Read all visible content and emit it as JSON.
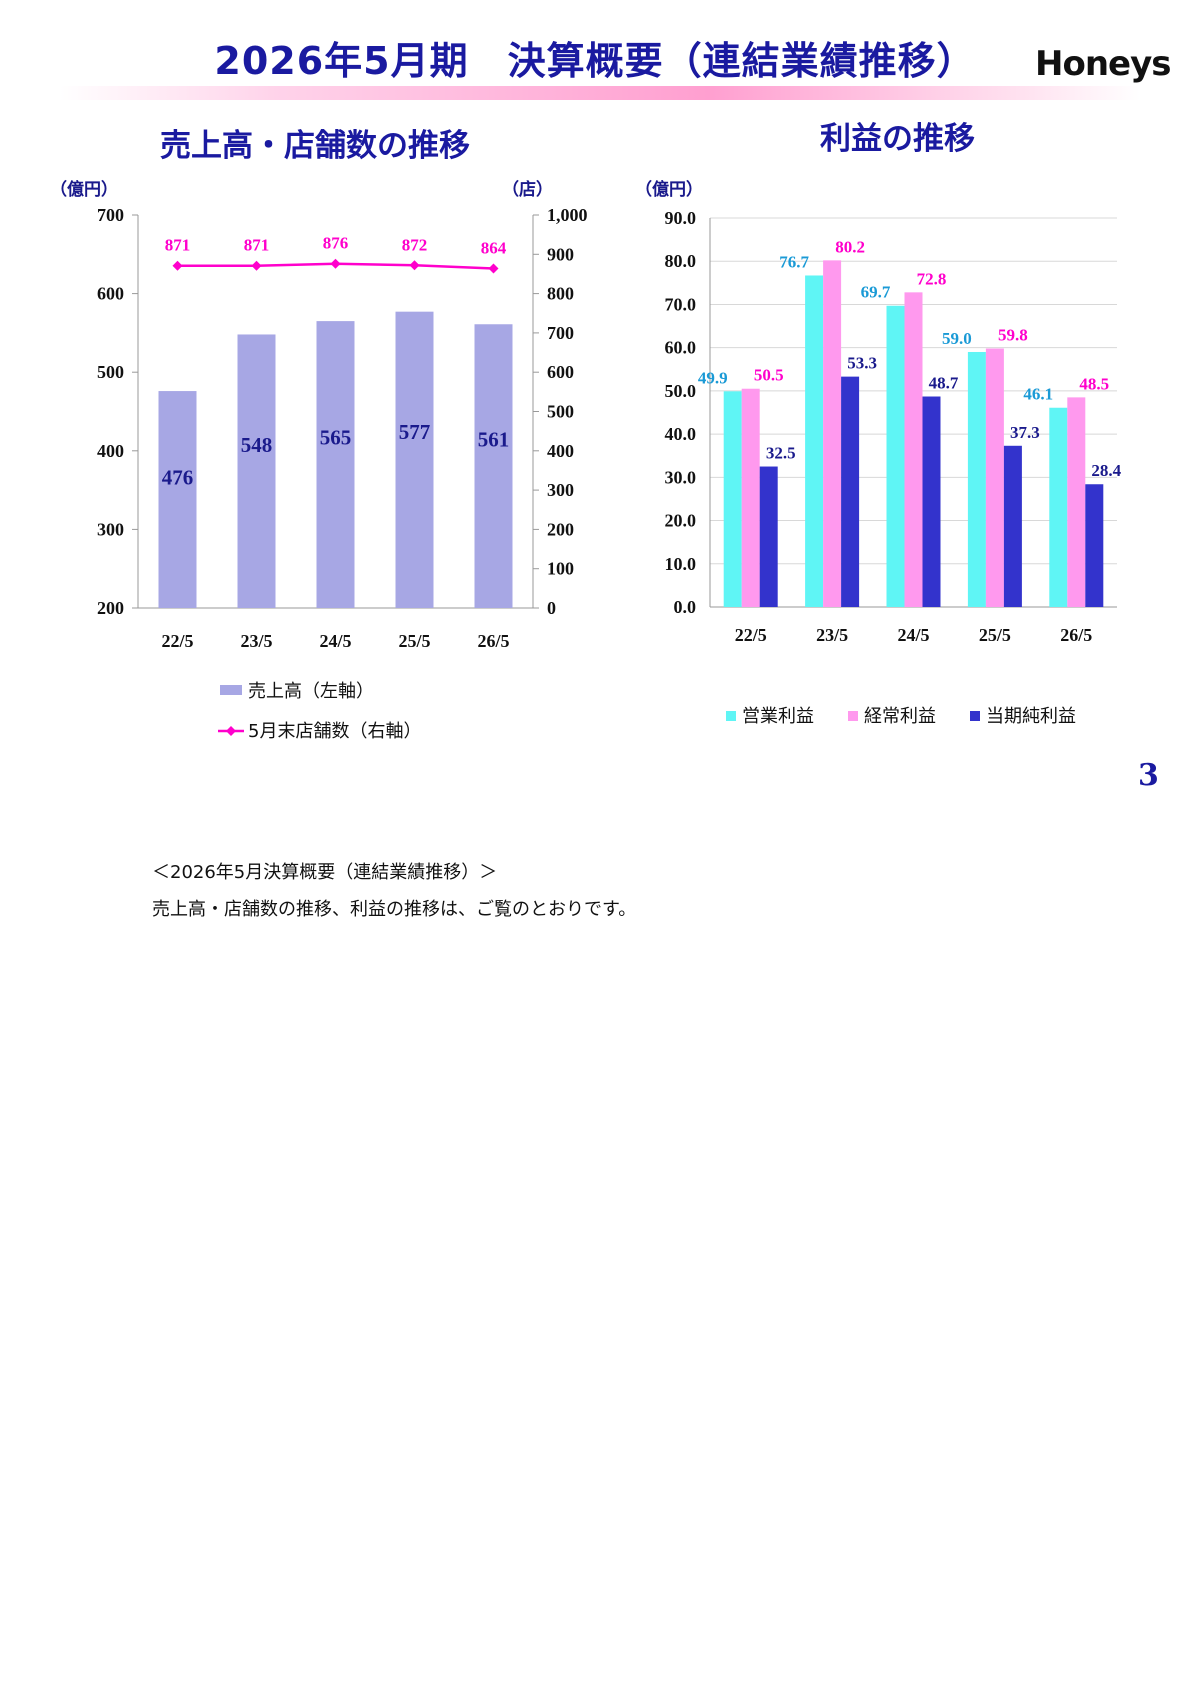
{
  "header": {
    "title": "2026年5月期　決算概要（連結業績推移）",
    "logo_text": "Honeys"
  },
  "page_number": "3",
  "note": {
    "title": "＜2026年5月決算概要（連結業績推移）＞",
    "body": "売上高・店舗数の推移、利益の推移は、ご覧のとおりです。"
  },
  "chart_data": [
    {
      "type": "bar",
      "title": "売上高・店舗数の推移",
      "categories": [
        "22/5",
        "23/5",
        "24/5",
        "25/5",
        "26/5"
      ],
      "y_left_unit": "（億円）",
      "y_right_unit": "（店）",
      "ylim_left": [
        200,
        700
      ],
      "ylim_right": [
        0,
        1000
      ],
      "left_ticks": [
        "200",
        "300",
        "400",
        "500",
        "600",
        "700"
      ],
      "right_ticks": [
        "0",
        "100",
        "200",
        "300",
        "400",
        "500",
        "600",
        "700",
        "800",
        "900",
        "1,000"
      ],
      "grid": false,
      "legend_position": "bottom",
      "series": [
        {
          "name": "売上高（左軸）",
          "kind": "bar",
          "axis": "left",
          "color": "#a7a7e4",
          "label_color": "#1a1a8c",
          "values": [
            476,
            548,
            565,
            577,
            561
          ]
        },
        {
          "name": "5月末店舗数（右軸）",
          "kind": "line",
          "axis": "right",
          "color": "#ff00cc",
          "label_color": "#ff00cc",
          "values": [
            871,
            871,
            876,
            872,
            864
          ]
        }
      ]
    },
    {
      "type": "bar",
      "title": "利益の推移",
      "categories": [
        "22/5",
        "23/5",
        "24/5",
        "25/5",
        "26/5"
      ],
      "y_unit": "（億円）",
      "ylim": [
        0,
        90
      ],
      "ticks": [
        "0.0",
        "10.0",
        "20.0",
        "30.0",
        "40.0",
        "50.0",
        "60.0",
        "70.0",
        "80.0",
        "90.0"
      ],
      "grid": true,
      "legend_position": "bottom",
      "series": [
        {
          "name": "営業利益",
          "color": "#5ff5f5",
          "label_color": "#1a9ad6",
          "values": [
            49.9,
            76.7,
            69.7,
            59.0,
            46.1
          ],
          "labels": [
            "49.9",
            "76.7",
            "69.7",
            "59.0",
            "46.1"
          ]
        },
        {
          "name": "経常利益",
          "color": "#ff99ee",
          "label_color": "#ff00cc",
          "values": [
            50.5,
            80.2,
            72.8,
            59.8,
            48.5
          ],
          "labels": [
            "50.5",
            "80.2",
            "72.8",
            "59.8",
            "48.5"
          ]
        },
        {
          "name": "当期純利益",
          "color": "#3333cc",
          "label_color": "#1a1a8c",
          "values": [
            32.5,
            53.3,
            48.7,
            37.3,
            28.4
          ],
          "labels": [
            "32.5",
            "53.3",
            "48.7",
            "37.3",
            "28.4"
          ]
        }
      ]
    }
  ]
}
